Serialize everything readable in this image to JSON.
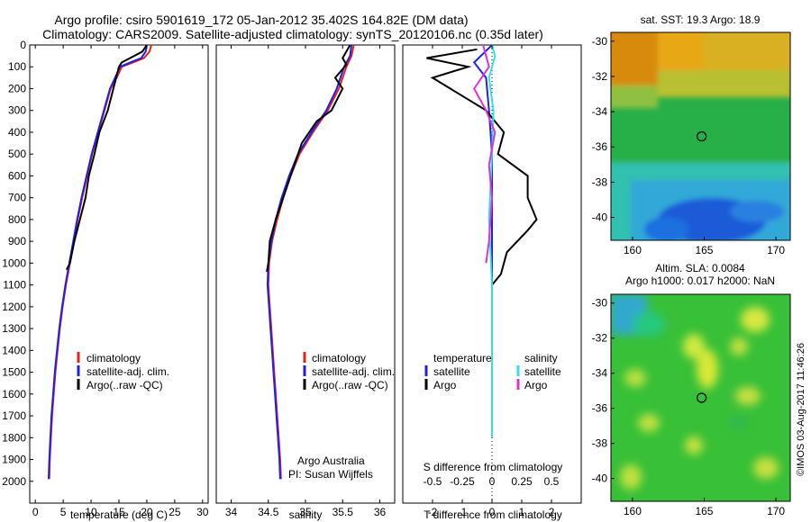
{
  "header": {
    "line1": "Argo profile: csiro 5901619_172 05-Jan-2012 35.402S 164.82E (DM data)",
    "line2": "Climatology: CARS2009. Satellite-adjusted climatology: synTS_20120106.nc (0.35d later)"
  },
  "watermark": "©IMOS 03-Aug-2017 11:46:26",
  "credit": {
    "line1": "Argo Australia",
    "line2": "PI: Susan Wijffels"
  },
  "colors": {
    "climatology": "#e8201e",
    "satellite": "#1f1fe8",
    "argo": "#000000",
    "satellite_s": "#33e0e8",
    "argo_s": "#e030d8"
  },
  "chart_data": [
    {
      "id": "temperature",
      "type": "line",
      "xlabel": "temperature (deg C)",
      "ylabel": "",
      "xlim": [
        -1,
        31
      ],
      "ylim": [
        2100,
        0
      ],
      "xticks": [
        0,
        5,
        10,
        15,
        20,
        25,
        30
      ],
      "yticks": [
        0,
        100,
        200,
        300,
        400,
        500,
        600,
        700,
        800,
        900,
        1000,
        1100,
        1200,
        1300,
        1400,
        1500,
        1600,
        1700,
        1800,
        1900,
        2000
      ],
      "legend": [
        "climatology",
        "satellite-adj. clim.",
        "Argo(..raw -QC)"
      ],
      "series": [
        {
          "name": "climatology",
          "color": "#e8201e",
          "points": [
            [
              20.8,
              0
            ],
            [
              20.5,
              30
            ],
            [
              19.5,
              60
            ],
            [
              17.5,
              80
            ],
            [
              15.5,
              100
            ],
            [
              14.6,
              150
            ],
            [
              13.5,
              200
            ],
            [
              12.4,
              300
            ],
            [
              11.3,
              400
            ],
            [
              10.2,
              500
            ],
            [
              9.3,
              600
            ],
            [
              8.4,
              700
            ],
            [
              7.6,
              800
            ],
            [
              6.9,
              900
            ],
            [
              6.2,
              1000
            ],
            [
              5.5,
              1100
            ],
            [
              4.9,
              1200
            ],
            [
              4.4,
              1300
            ],
            [
              4.0,
              1400
            ],
            [
              3.6,
              1500
            ],
            [
              3.3,
              1600
            ],
            [
              3.0,
              1700
            ],
            [
              2.8,
              1800
            ],
            [
              2.6,
              1900
            ],
            [
              2.5,
              1990
            ]
          ]
        },
        {
          "name": "satellite-adj. clim.",
          "color": "#1f1fe8",
          "points": [
            [
              20.0,
              0
            ],
            [
              19.8,
              30
            ],
            [
              19.0,
              60
            ],
            [
              17.0,
              80
            ],
            [
              15.2,
              100
            ],
            [
              14.3,
              150
            ],
            [
              13.4,
              200
            ],
            [
              12.3,
              300
            ],
            [
              11.2,
              400
            ],
            [
              10.1,
              500
            ],
            [
              9.2,
              600
            ],
            [
              8.3,
              700
            ],
            [
              7.5,
              800
            ],
            [
              6.8,
              900
            ],
            [
              6.1,
              1000
            ],
            [
              5.4,
              1100
            ],
            [
              4.8,
              1200
            ],
            [
              4.3,
              1300
            ],
            [
              3.9,
              1400
            ],
            [
              3.5,
              1500
            ],
            [
              3.2,
              1600
            ],
            [
              2.9,
              1700
            ],
            [
              2.7,
              1800
            ],
            [
              2.5,
              1900
            ],
            [
              2.4,
              1990
            ]
          ]
        },
        {
          "name": "Argo(..raw -QC)",
          "color": "#000000",
          "points": [
            [
              20.0,
              0
            ],
            [
              19.2,
              30
            ],
            [
              17.0,
              60
            ],
            [
              15.5,
              80
            ],
            [
              15.0,
              100
            ],
            [
              14.0,
              200
            ],
            [
              13.0,
              300
            ],
            [
              11.5,
              400
            ],
            [
              10.6,
              500
            ],
            [
              9.6,
              600
            ],
            [
              9.0,
              700
            ],
            [
              8.0,
              800
            ],
            [
              7.0,
              900
            ],
            [
              6.2,
              1000
            ],
            [
              5.6,
              1030
            ]
          ]
        }
      ]
    },
    {
      "id": "salinity",
      "type": "line",
      "xlabel": "salinity",
      "ylabel": "",
      "xlim": [
        33.8,
        36.2
      ],
      "ylim": [
        2100,
        0
      ],
      "xticks": [
        34,
        34.5,
        35,
        35.5,
        36
      ],
      "legend": [
        "climatology",
        "satellite-adj. clim.",
        "Argo(..raw -QC)"
      ],
      "series": [
        {
          "name": "climatology",
          "color": "#e8201e",
          "points": [
            [
              35.65,
              0
            ],
            [
              35.62,
              50
            ],
            [
              35.55,
              100
            ],
            [
              35.45,
              200
            ],
            [
              35.3,
              300
            ],
            [
              35.1,
              400
            ],
            [
              34.92,
              500
            ],
            [
              34.8,
              600
            ],
            [
              34.7,
              700
            ],
            [
              34.62,
              800
            ],
            [
              34.55,
              900
            ],
            [
              34.51,
              1000
            ],
            [
              34.5,
              1100
            ],
            [
              34.52,
              1200
            ],
            [
              34.54,
              1300
            ],
            [
              34.56,
              1400
            ],
            [
              34.58,
              1500
            ],
            [
              34.6,
              1600
            ],
            [
              34.62,
              1700
            ],
            [
              34.64,
              1800
            ],
            [
              34.66,
              1900
            ],
            [
              34.67,
              1990
            ]
          ]
        },
        {
          "name": "satellite-adj. clim.",
          "color": "#1f1fe8",
          "points": [
            [
              35.62,
              0
            ],
            [
              35.6,
              50
            ],
            [
              35.52,
              100
            ],
            [
              35.42,
              200
            ],
            [
              35.28,
              300
            ],
            [
              35.08,
              400
            ],
            [
              34.9,
              500
            ],
            [
              34.78,
              600
            ],
            [
              34.68,
              700
            ],
            [
              34.6,
              800
            ],
            [
              34.54,
              900
            ],
            [
              34.5,
              1000
            ],
            [
              34.49,
              1100
            ],
            [
              34.51,
              1200
            ],
            [
              34.53,
              1300
            ],
            [
              34.55,
              1400
            ],
            [
              34.57,
              1500
            ],
            [
              34.59,
              1600
            ],
            [
              34.61,
              1700
            ],
            [
              34.63,
              1800
            ],
            [
              34.65,
              1900
            ],
            [
              34.66,
              1990
            ]
          ]
        },
        {
          "name": "Argo(..raw -QC)",
          "color": "#000000",
          "points": [
            [
              35.6,
              0
            ],
            [
              35.5,
              60
            ],
            [
              35.55,
              90
            ],
            [
              35.4,
              150
            ],
            [
              35.5,
              200
            ],
            [
              35.35,
              300
            ],
            [
              35.15,
              350
            ],
            [
              34.95,
              450
            ],
            [
              34.8,
              600
            ],
            [
              34.7,
              700
            ],
            [
              34.6,
              800
            ],
            [
              34.52,
              900
            ],
            [
              34.5,
              1000
            ],
            [
              34.48,
              1040
            ]
          ]
        }
      ]
    },
    {
      "id": "difference",
      "type": "line",
      "xlabel": "T difference from climatology",
      "xlabel2": "S difference from climatology",
      "xlim": [
        -3,
        3
      ],
      "ylim": [
        2100,
        0
      ],
      "xticks": [
        -2,
        -1,
        0,
        1,
        2
      ],
      "xticks2": [
        "-0.5",
        "-0.25",
        "0",
        "0.25",
        "0.5"
      ],
      "legend_title_t": "temperature",
      "legend_title_s": "salinity",
      "legend_t": [
        "satellite",
        "Argo"
      ],
      "legend_s": [
        "satellite",
        "Argo"
      ],
      "series": [
        {
          "name": "T satellite",
          "color": "#1f1fe8",
          "points": [
            [
              0,
              0
            ],
            [
              -0.3,
              40
            ],
            [
              -0.6,
              80
            ],
            [
              -0.2,
              150
            ],
            [
              -0.1,
              300
            ],
            [
              0,
              500
            ],
            [
              0,
              800
            ],
            [
              0,
              1100
            ],
            [
              0,
              1500
            ],
            [
              0,
              1800
            ]
          ]
        },
        {
          "name": "T Argo",
          "color": "#000000",
          "points": [
            [
              -0.5,
              20
            ],
            [
              -2.2,
              60
            ],
            [
              -0.8,
              100
            ],
            [
              -2.0,
              150
            ],
            [
              -1.4,
              200
            ],
            [
              -0.2,
              300
            ],
            [
              0.4,
              400
            ],
            [
              0.2,
              500
            ],
            [
              1.2,
              600
            ],
            [
              1.2,
              700
            ],
            [
              1.5,
              800
            ],
            [
              1.2,
              850
            ],
            [
              0.5,
              950
            ],
            [
              0.3,
              1050
            ],
            [
              0,
              1100
            ]
          ]
        },
        {
          "name": "S satellite",
          "color": "#33e0e8",
          "points": [
            [
              0,
              0
            ],
            [
              0.1,
              50
            ],
            [
              -0.1,
              150
            ],
            [
              0.05,
              300
            ],
            [
              0,
              500
            ],
            [
              -0.1,
              800
            ],
            [
              0,
              1100
            ],
            [
              0,
              1500
            ],
            [
              0,
              1800
            ]
          ]
        },
        {
          "name": "S Argo",
          "color": "#e030d8",
          "points": [
            [
              -0.3,
              0
            ],
            [
              -0.1,
              100
            ],
            [
              -0.6,
              200
            ],
            [
              -0.2,
              300
            ],
            [
              0.1,
              400
            ],
            [
              -0.1,
              550
            ],
            [
              0,
              700
            ],
            [
              -0.1,
              900
            ],
            [
              -0.2,
              1000
            ]
          ]
        }
      ]
    },
    {
      "id": "map-sst",
      "type": "heatmap",
      "title": "sat. SST: 19.3 Argo: 18.9",
      "xlim": [
        158.5,
        171
      ],
      "ylim": [
        -41.3,
        -29.5
      ],
      "xticks": [
        160,
        165,
        170
      ],
      "yticks": [
        -30,
        -32,
        -34,
        -36,
        -38,
        -40
      ],
      "marker": [
        164.82,
        -35.4
      ]
    },
    {
      "id": "map-sla",
      "type": "heatmap",
      "title": "Altim. SLA: 0.0084",
      "subtitle": "Argo h1000: 0.017 h2000: NaN",
      "xlim": [
        158.5,
        171
      ],
      "ylim": [
        -41.3,
        -29.5
      ],
      "xticks": [
        160,
        165,
        170
      ],
      "yticks": [
        -30,
        -32,
        -34,
        -36,
        -38,
        -40
      ],
      "marker": [
        164.82,
        -35.4
      ]
    }
  ]
}
